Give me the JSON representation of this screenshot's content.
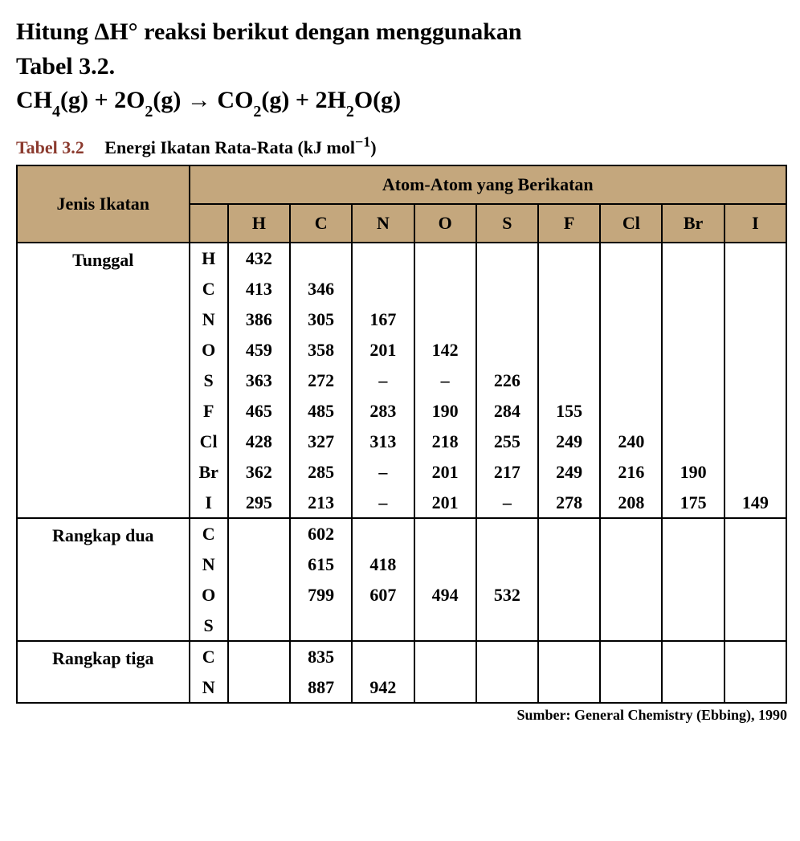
{
  "title": {
    "line1_pre": "Hitung ",
    "delta": "Δ",
    "line1_post": "H° reaksi berikut dengan menggunakan",
    "line2": "Tabel 3.2."
  },
  "equation": {
    "ch4": "CH",
    "ch4_sub": "4",
    "ch4_state": "(g) + 2O",
    "o2_sub": "2",
    "o2_state": "(g) ",
    "arrow": "→",
    "co2_pre": " CO",
    "co2_sub": "2",
    "co2_state": "(g) +  2H",
    "h2o_sub": "2",
    "h2o_post": "O(g)"
  },
  "table": {
    "caption_prefix": "Tabel 3.2",
    "caption_text": "Energi Ikatan Rata-Rata (kJ mol",
    "caption_sup": "−1",
    "caption_close": ")",
    "header_jenis": "Jenis Ikatan",
    "header_atom": "Atom-Atom yang Berikatan",
    "columns": [
      "H",
      "C",
      "N",
      "O",
      "S",
      "F",
      "Cl",
      "Br",
      "I"
    ],
    "groups": [
      {
        "name": "Tunggal",
        "rows": [
          {
            "label": "H",
            "values": [
              "432",
              "",
              "",
              "",
              "",
              "",
              "",
              "",
              ""
            ]
          },
          {
            "label": "C",
            "values": [
              "413",
              "346",
              "",
              "",
              "",
              "",
              "",
              "",
              ""
            ]
          },
          {
            "label": "N",
            "values": [
              "386",
              "305",
              "167",
              "",
              "",
              "",
              "",
              "",
              ""
            ]
          },
          {
            "label": "O",
            "values": [
              "459",
              "358",
              "201",
              "142",
              "",
              "",
              "",
              "",
              ""
            ]
          },
          {
            "label": "S",
            "values": [
              "363",
              "272",
              "–",
              "–",
              "226",
              "",
              "",
              "",
              ""
            ]
          },
          {
            "label": "F",
            "values": [
              "465",
              "485",
              "283",
              "190",
              "284",
              "155",
              "",
              "",
              ""
            ]
          },
          {
            "label": "Cl",
            "values": [
              "428",
              "327",
              "313",
              "218",
              "255",
              "249",
              "240",
              "",
              ""
            ]
          },
          {
            "label": "Br",
            "values": [
              "362",
              "285",
              "–",
              "201",
              "217",
              "249",
              "216",
              "190",
              ""
            ]
          },
          {
            "label": "I",
            "values": [
              "295",
              "213",
              "–",
              "201",
              "–",
              "278",
              "208",
              "175",
              "149"
            ]
          }
        ]
      },
      {
        "name": "Rangkap dua",
        "rows": [
          {
            "label": "C",
            "values": [
              "",
              "602",
              "",
              "",
              "",
              "",
              "",
              "",
              ""
            ]
          },
          {
            "label": "N",
            "values": [
              "",
              "615",
              "418",
              "",
              "",
              "",
              "",
              "",
              ""
            ]
          },
          {
            "label": "O",
            "values": [
              "",
              "799",
              "607",
              "494",
              "532",
              "",
              "",
              "",
              ""
            ]
          },
          {
            "label": "S",
            "values": [
              "",
              "",
              "",
              "",
              "",
              "",
              "",
              "",
              ""
            ]
          }
        ]
      },
      {
        "name": "Rangkap tiga",
        "rows": [
          {
            "label": "C",
            "values": [
              "",
              "835",
              "",
              "",
              "",
              "",
              "",
              "",
              ""
            ]
          },
          {
            "label": "N",
            "values": [
              "",
              "887",
              "942",
              "",
              "",
              "",
              "",
              "",
              ""
            ]
          }
        ]
      }
    ],
    "source": "Sumber: General Chemistry (Ebbing), 1990"
  },
  "colors": {
    "header_bg": "#c4a77d",
    "border": "#000000",
    "background": "#ffffff",
    "tabel_num": "#8b3a2e"
  }
}
